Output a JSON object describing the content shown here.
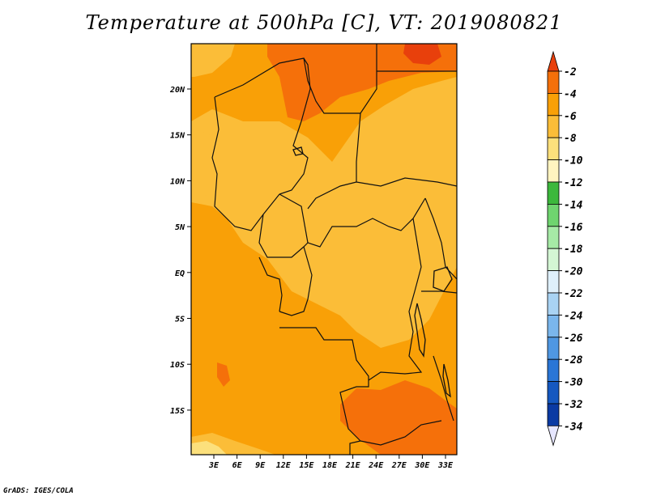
{
  "title": "Temperature at 500hPa [C], VT: 2019080821",
  "credit": "GrADS: IGES/COLA",
  "map": {
    "lat_ticks": [
      "20N",
      "15N",
      "10N",
      "5N",
      "EQ",
      "5S",
      "10S",
      "15S"
    ],
    "lon_ticks": [
      "3E",
      "6E",
      "9E",
      "12E",
      "15E",
      "18E",
      "21E",
      "24E",
      "27E",
      "30E",
      "33E"
    ]
  },
  "colorbar": {
    "labels": [
      "-2",
      "-4",
      "-6",
      "-8",
      "-10",
      "-12",
      "-14",
      "-16",
      "-18",
      "-20",
      "-22",
      "-24",
      "-26",
      "-28",
      "-30",
      "-32",
      "-34"
    ],
    "colors": [
      "#e8400c",
      "#f5700a",
      "#f9a007",
      "#fbbd38",
      "#fce07c",
      "#fff4c0",
      "#3cb83c",
      "#6fd46f",
      "#a6eaa6",
      "#d4f6d4",
      "#dff0fb",
      "#a9d3f3",
      "#7ab6ec",
      "#4f97e2",
      "#2a76d6",
      "#1558c0",
      "#0a3aa3",
      "#0a1a6e"
    ],
    "top_arrow_color": "#e8400c",
    "bottom_arrow_color": "#e6e6ff"
  }
}
